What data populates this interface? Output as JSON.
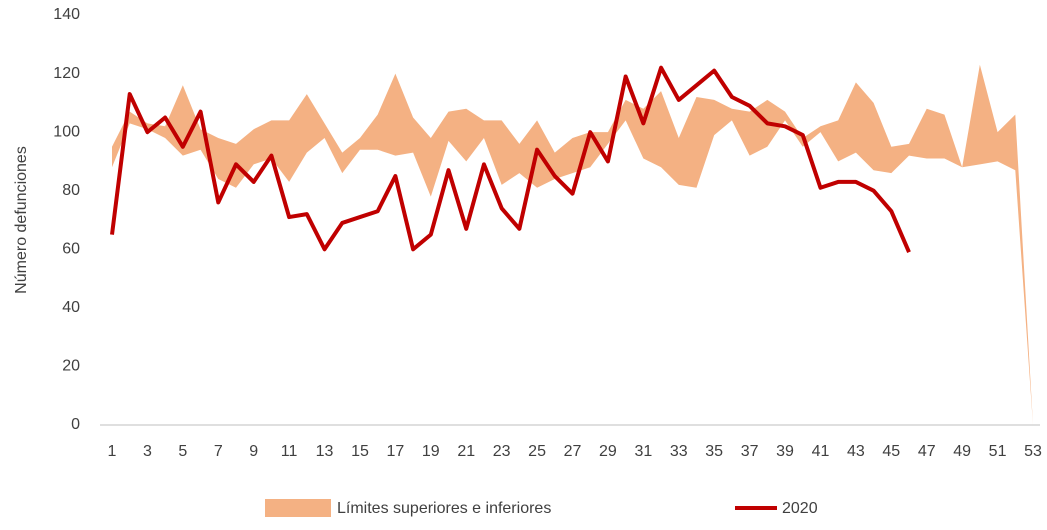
{
  "chart_data": {
    "type": "line",
    "ylabel": "Número defunciones",
    "x": [
      1,
      2,
      3,
      4,
      5,
      6,
      7,
      8,
      9,
      10,
      11,
      12,
      13,
      14,
      15,
      16,
      17,
      18,
      19,
      20,
      21,
      22,
      23,
      24,
      25,
      26,
      27,
      28,
      29,
      30,
      31,
      32,
      33,
      34,
      35,
      36,
      37,
      38,
      39,
      40,
      41,
      42,
      43,
      44,
      45,
      46,
      47,
      48,
      49,
      50,
      51,
      52,
      53
    ],
    "xlim": [
      1,
      53
    ],
    "xticks": [
      1,
      3,
      5,
      7,
      9,
      11,
      13,
      15,
      17,
      19,
      21,
      23,
      25,
      27,
      29,
      31,
      33,
      35,
      37,
      39,
      41,
      43,
      45,
      47,
      49,
      51,
      53
    ],
    "ylim": [
      0,
      140
    ],
    "yticks": [
      0,
      20,
      40,
      60,
      80,
      100,
      120,
      140
    ],
    "grid": false,
    "legend": "bottom",
    "series": [
      {
        "name": "Límites superiores e inferiores",
        "color": "#f4b183",
        "type": "band",
        "upper": [
          95,
          107,
          103,
          102,
          116,
          101,
          98,
          96,
          101,
          104,
          104,
          113,
          103,
          93,
          98,
          106,
          120,
          105,
          98,
          107,
          108,
          104,
          104,
          96,
          104,
          93,
          98,
          100,
          100,
          111,
          108,
          114,
          98,
          112,
          111,
          108,
          107,
          111,
          107,
          98,
          102,
          104,
          117,
          110,
          95,
          96,
          108,
          106,
          88,
          123,
          100,
          106,
          0
        ],
        "lower": [
          88,
          103,
          101,
          98,
          92,
          94,
          84,
          81,
          89,
          91,
          83,
          93,
          98,
          86,
          94,
          94,
          92,
          93,
          78,
          97,
          90,
          98,
          82,
          86,
          81,
          84,
          86,
          88,
          96,
          104,
          91,
          88,
          82,
          81,
          99,
          104,
          92,
          95,
          104,
          95,
          100,
          90,
          93,
          87,
          86,
          92,
          91,
          91,
          88,
          89,
          90,
          87,
          0
        ]
      },
      {
        "name": "2020",
        "color": "#c00000",
        "type": "line",
        "values": [
          65,
          113,
          100,
          105,
          95,
          107,
          76,
          89,
          83,
          92,
          71,
          72,
          60,
          69,
          71,
          73,
          85,
          60,
          65,
          87,
          67,
          89,
          74,
          67,
          94,
          85,
          79,
          100,
          90,
          119,
          103,
          122,
          111,
          116,
          121,
          112,
          109,
          103,
          102,
          99,
          81,
          83,
          83,
          80,
          73,
          59,
          null,
          null,
          null,
          null,
          null,
          null,
          null
        ]
      }
    ]
  }
}
